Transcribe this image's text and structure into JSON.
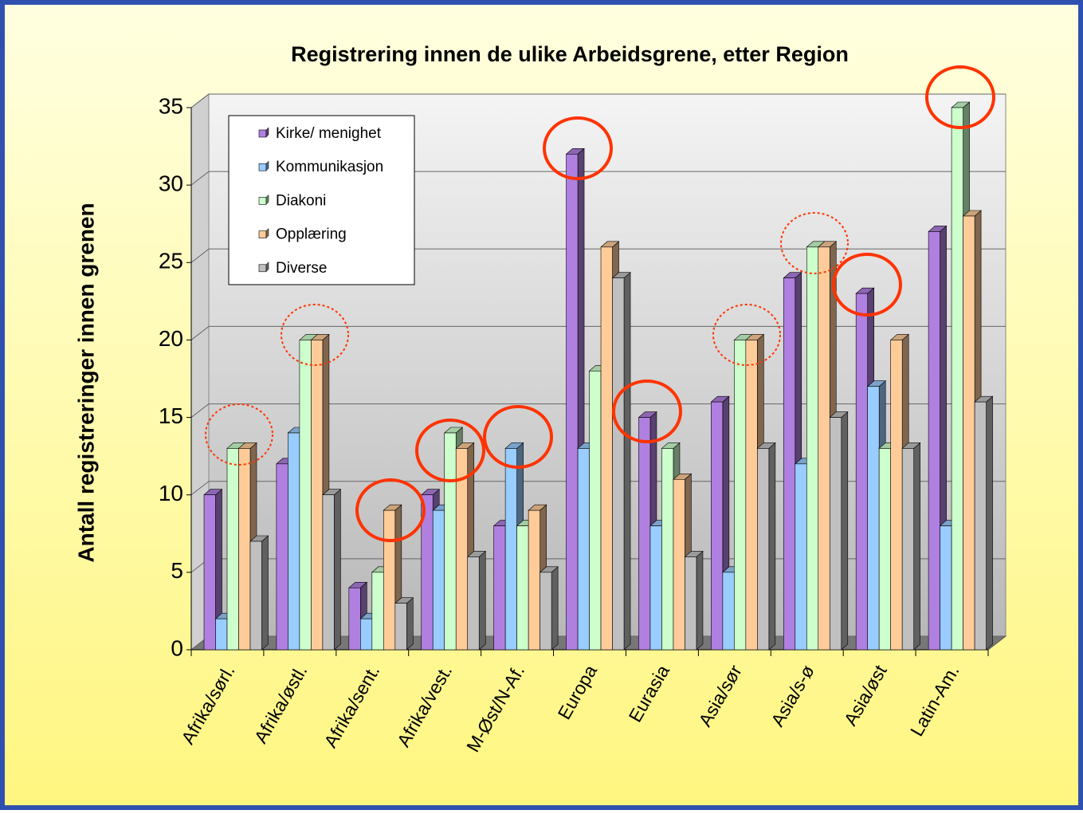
{
  "chart_data": {
    "type": "bar3d",
    "title": "Registrering innen de ulike Arbeidsgrene, etter Region",
    "y_label": "Antall registreringer innen grenen",
    "categories": [
      "Afrika/sørl.",
      "Afrika/østl.",
      "Afrika/sent.",
      "Afrika/vest.",
      "M-Øst/N-Af.",
      "Europa",
      "Eurasia",
      "Asia/sør",
      "Asia/s-ø",
      "Asia/øst",
      "Latin-Am."
    ],
    "series": [
      {
        "name": "Kirke/ menighet",
        "color": "#b080e0",
        "values": [
          10,
          12,
          4,
          10,
          8,
          32,
          15,
          16,
          24,
          23,
          27
        ]
      },
      {
        "name": "Kommunikasjon",
        "color": "#99ccff",
        "values": [
          2,
          14,
          2,
          9,
          13,
          13,
          8,
          5,
          12,
          17,
          8
        ]
      },
      {
        "name": "Diakoni",
        "color": "#ccffcc",
        "values": [
          13,
          20,
          5,
          14,
          8,
          18,
          13,
          20,
          26,
          13,
          35
        ]
      },
      {
        "name": "Opplæring",
        "color": "#ffcc99",
        "values": [
          13,
          20,
          9,
          13,
          9,
          26,
          11,
          20,
          26,
          20,
          28
        ]
      },
      {
        "name": "Diverse",
        "color": "#c0c0c0",
        "values": [
          7,
          10,
          3,
          6,
          5,
          24,
          6,
          13,
          15,
          13,
          16
        ]
      }
    ],
    "ylim": [
      0,
      35
    ],
    "yticks": [
      0,
      5,
      10,
      15,
      20,
      25,
      30,
      35
    ],
    "grid": true,
    "legend": "top-left"
  }
}
